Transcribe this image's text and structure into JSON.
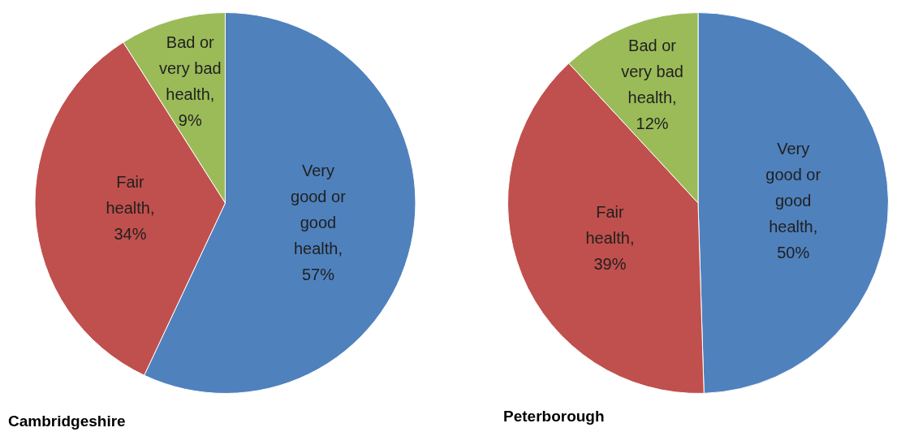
{
  "chart_data": [
    {
      "type": "pie",
      "title": "Cambridgeshire",
      "categories": [
        "Very good or good health",
        "Fair health",
        "Bad or very bad health"
      ],
      "values": [
        57,
        34,
        9
      ],
      "value_labels": [
        ", 57%",
        ", 34%",
        ", 9%"
      ],
      "colors": [
        "#4f81bd",
        "#c0504d",
        "#9bbb59"
      ]
    },
    {
      "type": "pie",
      "title": "Peterborough",
      "categories": [
        "Very good or good health",
        "Fair health",
        "Bad or very bad health"
      ],
      "values": [
        50,
        39,
        12
      ],
      "value_labels": [
        ", 50%",
        ", 39%",
        ", 12%"
      ],
      "colors": [
        "#4f81bd",
        "#c0504d",
        "#9bbb59"
      ]
    }
  ]
}
